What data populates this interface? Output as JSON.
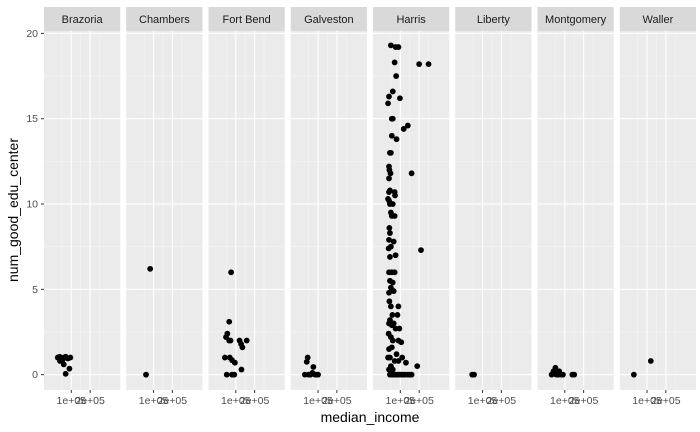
{
  "chart_data": {
    "type": "scatter",
    "facet": "county",
    "xlabel": "median_income",
    "ylabel": "num_good_edu_center",
    "ylim": [
      -0.9,
      20.2
    ],
    "xlim": [
      -45000,
      360000
    ],
    "yticks": [
      0,
      5,
      10,
      15,
      20
    ],
    "xticks": [
      100000,
      200000
    ],
    "xtick_labels": [
      "1e+05",
      "2e+05"
    ],
    "grid": true,
    "panels": [
      {
        "name": "Brazoria",
        "points": [
          [
            28000,
            1.0
          ],
          [
            38000,
            1.05
          ],
          [
            45000,
            1.0
          ],
          [
            55000,
            0.9
          ],
          [
            62000,
            1.0
          ],
          [
            70000,
            1.05
          ],
          [
            82000,
            0.95
          ],
          [
            95000,
            1.0
          ],
          [
            40000,
            0.8
          ],
          [
            60000,
            0.6
          ],
          [
            90000,
            0.35
          ],
          [
            70000,
            0.05
          ]
        ]
      },
      {
        "name": "Chambers",
        "points": [
          [
            82000,
            6.2
          ],
          [
            60000,
            0.0
          ]
        ]
      },
      {
        "name": "Fort Bend",
        "points": [
          [
            75000,
            6.0
          ],
          [
            65000,
            3.1
          ],
          [
            55000,
            2.4
          ],
          [
            48000,
            2.2
          ],
          [
            65000,
            2.0
          ],
          [
            72000,
            2.0
          ],
          [
            120000,
            2.0
          ],
          [
            158000,
            2.0
          ],
          [
            128000,
            1.8
          ],
          [
            135000,
            1.6
          ],
          [
            42000,
            1.0
          ],
          [
            68000,
            1.0
          ],
          [
            80000,
            0.85
          ],
          [
            95000,
            0.7
          ],
          [
            130000,
            0.3
          ],
          [
            52000,
            0.0
          ],
          [
            80000,
            0.0
          ],
          [
            92000,
            0.0
          ]
        ]
      },
      {
        "name": "Galveston",
        "points": [
          [
            45000,
            1.0
          ],
          [
            40000,
            0.75
          ],
          [
            30000,
            0.0
          ],
          [
            50000,
            0.0
          ],
          [
            60000,
            0.0
          ],
          [
            75000,
            0.45
          ],
          [
            85000,
            0.0
          ],
          [
            95000,
            0.0
          ],
          [
            100000,
            0.0
          ],
          [
            70000,
            0.1
          ]
        ]
      },
      {
        "name": "Harris",
        "points": [
          [
            50000,
            19.3
          ],
          [
            75000,
            19.2
          ],
          [
            90000,
            19.2
          ],
          [
            200000,
            18.2
          ],
          [
            250000,
            18.2
          ],
          [
            70000,
            18.3
          ],
          [
            78000,
            17.5
          ],
          [
            40000,
            16.3
          ],
          [
            60000,
            16.6
          ],
          [
            98000,
            16.2
          ],
          [
            35000,
            15.9
          ],
          [
            55000,
            15.0
          ],
          [
            60000,
            15.0
          ],
          [
            140000,
            14.6
          ],
          [
            118000,
            14.4
          ],
          [
            55000,
            14.0
          ],
          [
            80000,
            13.8
          ],
          [
            45000,
            13.0
          ],
          [
            50000,
            13.0
          ],
          [
            40000,
            12.2
          ],
          [
            42000,
            12.0
          ],
          [
            48000,
            11.8
          ],
          [
            160000,
            11.8
          ],
          [
            40000,
            11.5
          ],
          [
            45000,
            10.8
          ],
          [
            40000,
            10.7
          ],
          [
            70000,
            10.7
          ],
          [
            72000,
            10.5
          ],
          [
            35000,
            10.3
          ],
          [
            40000,
            10.2
          ],
          [
            45000,
            10.0
          ],
          [
            60000,
            10.0
          ],
          [
            50000,
            9.5
          ],
          [
            55000,
            9.3
          ],
          [
            70000,
            9.3
          ],
          [
            42000,
            8.6
          ],
          [
            45000,
            8.3
          ],
          [
            40000,
            7.9
          ],
          [
            65000,
            7.8
          ],
          [
            50000,
            7.5
          ],
          [
            38000,
            7.4
          ],
          [
            210000,
            7.3
          ],
          [
            75000,
            7.0
          ],
          [
            45000,
            6.9
          ],
          [
            40000,
            6.0
          ],
          [
            55000,
            6.0
          ],
          [
            70000,
            6.0
          ],
          [
            45000,
            5.5
          ],
          [
            60000,
            5.4
          ],
          [
            50000,
            5.1
          ],
          [
            40000,
            4.8
          ],
          [
            65000,
            4.9
          ],
          [
            42000,
            4.3
          ],
          [
            50000,
            4.0
          ],
          [
            90000,
            4.0
          ],
          [
            58000,
            3.5
          ],
          [
            85000,
            3.5
          ],
          [
            40000,
            3.0
          ],
          [
            45000,
            3.2
          ],
          [
            55000,
            2.9
          ],
          [
            65000,
            3.0
          ],
          [
            75000,
            2.7
          ],
          [
            95000,
            2.7
          ],
          [
            38000,
            2.4
          ],
          [
            50000,
            2.2
          ],
          [
            60000,
            2.0
          ],
          [
            90000,
            2.0
          ],
          [
            105000,
            1.9
          ],
          [
            40000,
            1.5
          ],
          [
            55000,
            1.6
          ],
          [
            80000,
            1.2
          ],
          [
            110000,
            1.0
          ],
          [
            35000,
            1.0
          ],
          [
            45000,
            1.0
          ],
          [
            70000,
            0.8
          ],
          [
            90000,
            0.8
          ],
          [
            130000,
            0.7
          ],
          [
            50000,
            0.5
          ],
          [
            60000,
            0.3
          ],
          [
            190000,
            0.5
          ],
          [
            40000,
            0.3
          ],
          [
            45000,
            0.0
          ],
          [
            55000,
            0.0
          ],
          [
            65000,
            0.0
          ],
          [
            75000,
            0.0
          ],
          [
            85000,
            0.0
          ],
          [
            95000,
            0.0
          ],
          [
            105000,
            0.0
          ],
          [
            115000,
            0.0
          ],
          [
            125000,
            0.0
          ],
          [
            140000,
            0.0
          ],
          [
            150000,
            0.0
          ],
          [
            160000,
            0.0
          ]
        ]
      },
      {
        "name": "Liberty",
        "points": [
          [
            45000,
            0.0
          ],
          [
            55000,
            0.0
          ]
        ]
      },
      {
        "name": "Montgomery",
        "points": [
          [
            30000,
            0.0
          ],
          [
            40000,
            0.2
          ],
          [
            50000,
            0.4
          ],
          [
            55000,
            0.0
          ],
          [
            65000,
            0.0
          ],
          [
            70000,
            0.2
          ],
          [
            80000,
            0.0
          ],
          [
            90000,
            0.0
          ],
          [
            140000,
            0.0
          ],
          [
            150000,
            0.0
          ]
        ]
      },
      {
        "name": "Waller",
        "points": [
          [
            30000,
            0.0
          ],
          [
            120000,
            0.8
          ]
        ]
      }
    ]
  }
}
